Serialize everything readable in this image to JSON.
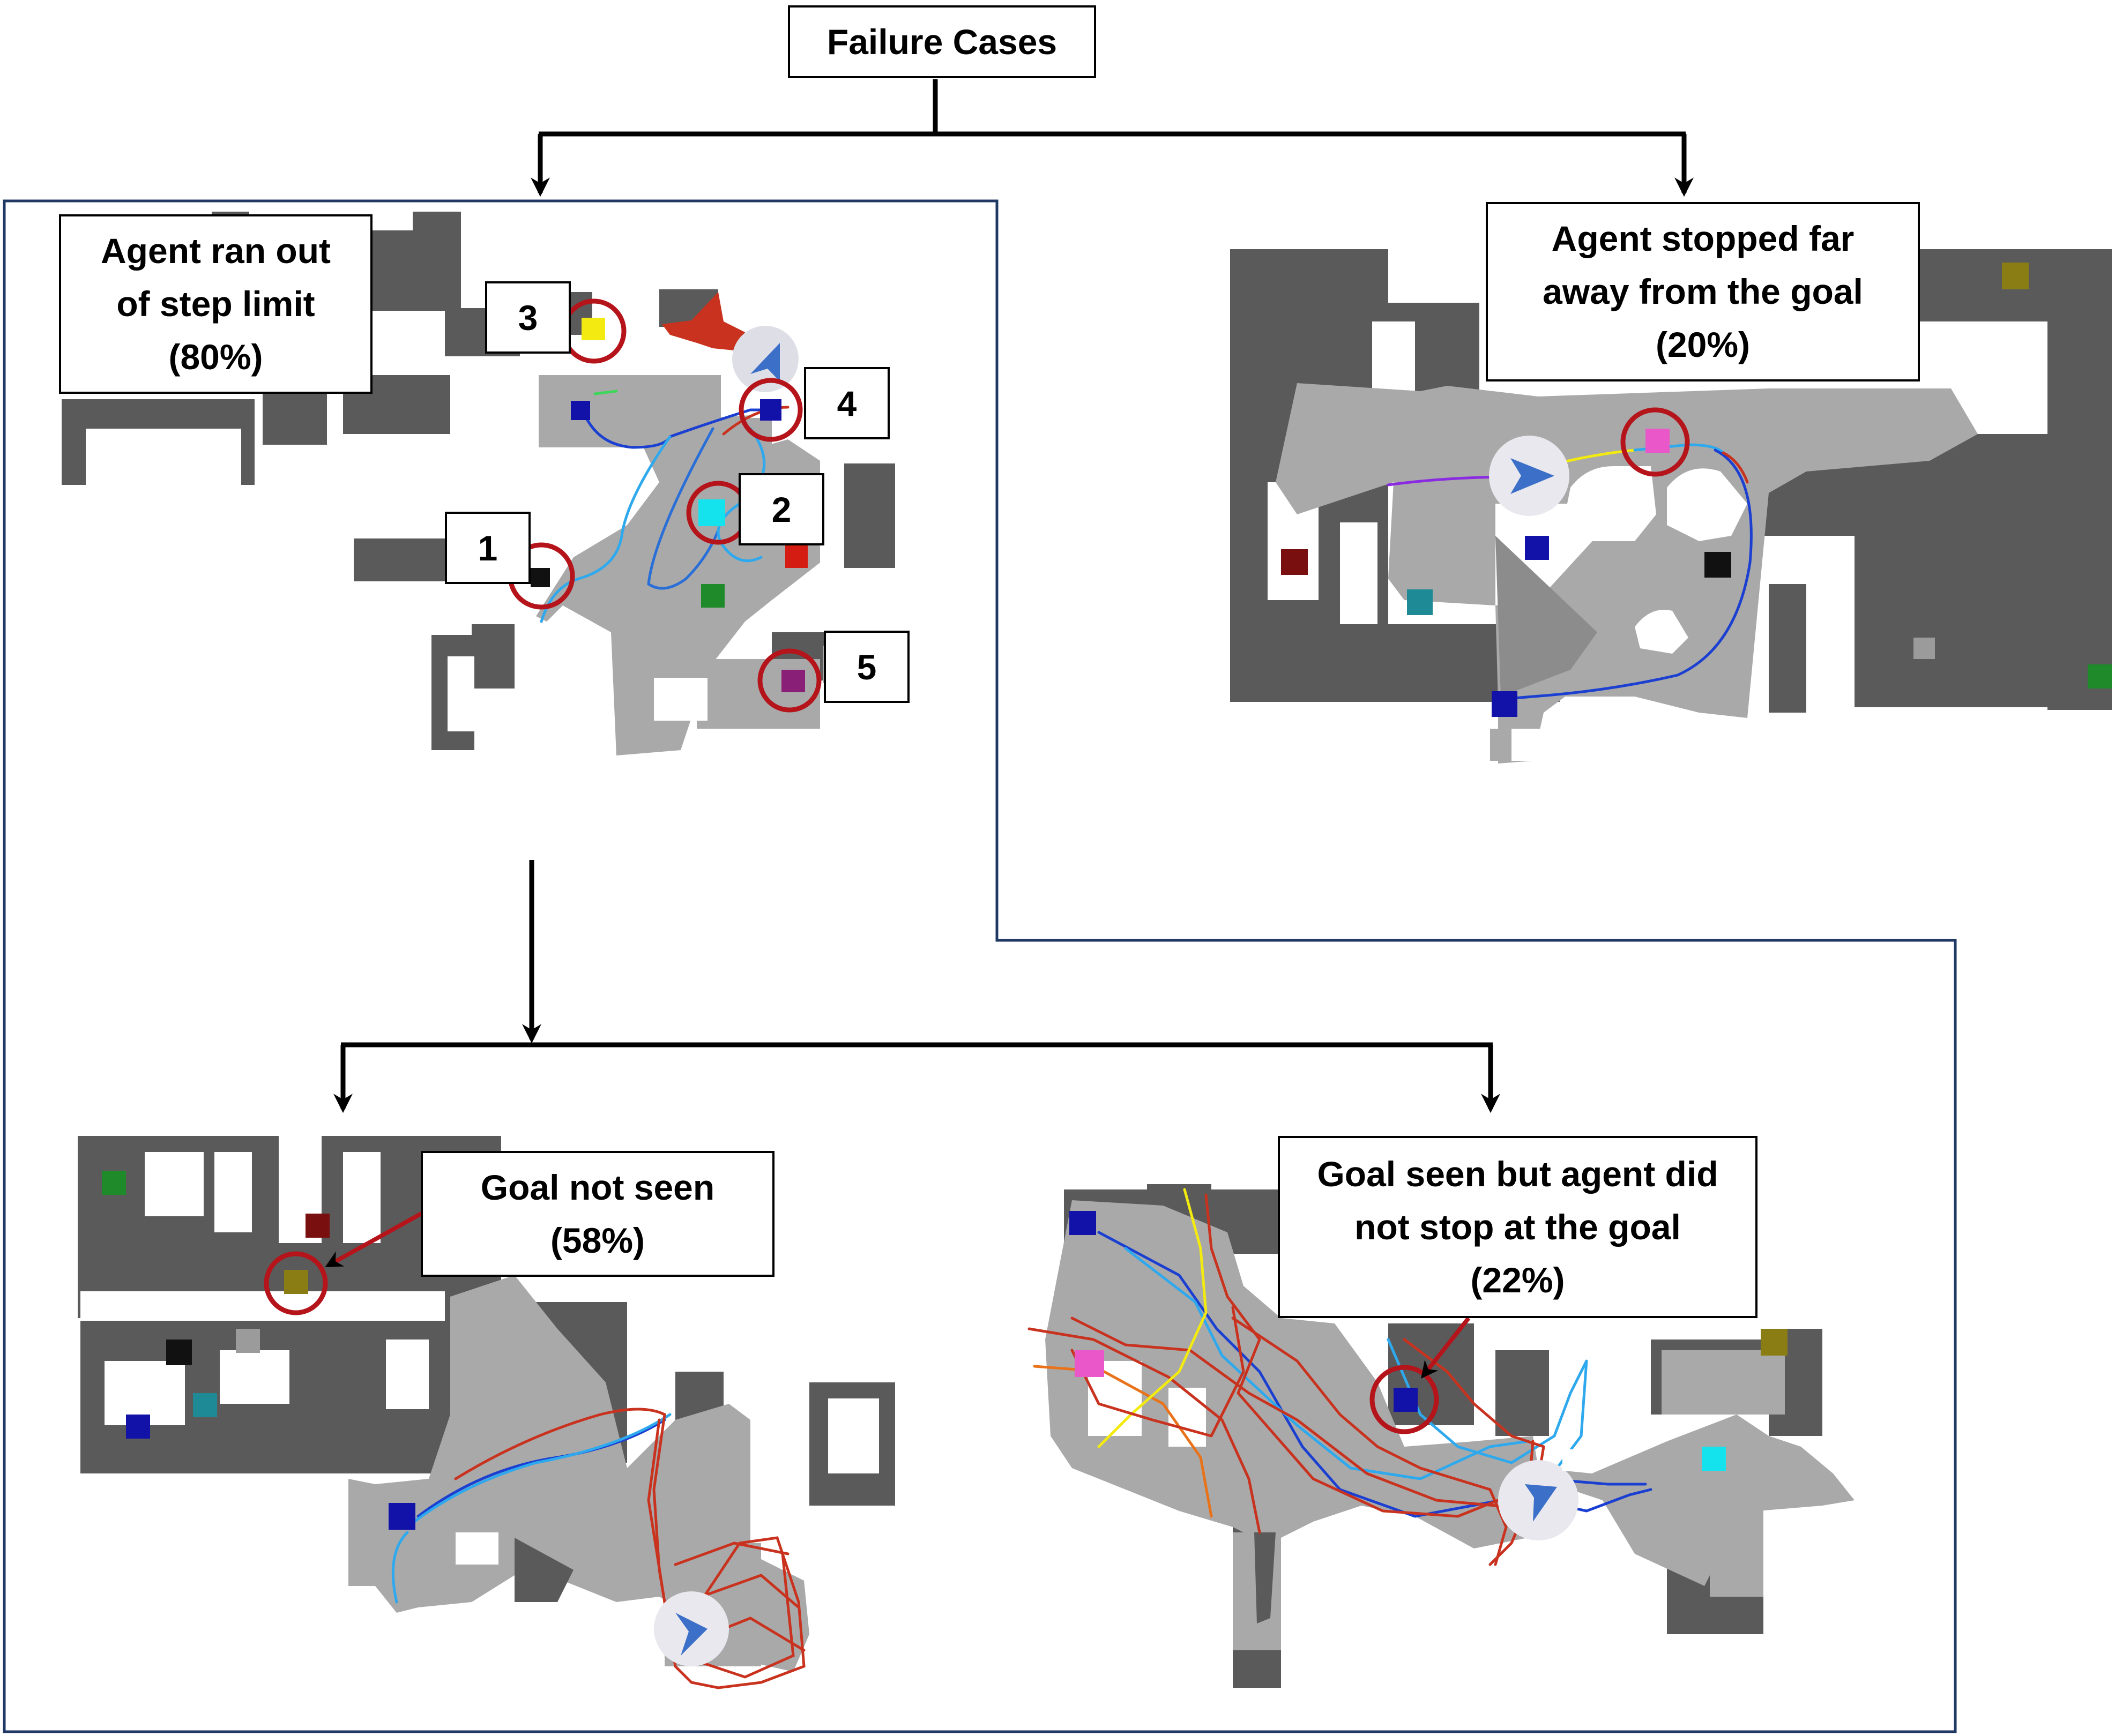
{
  "root": {
    "label": "Failure Cases"
  },
  "branch_step_limit": {
    "lines": [
      "Agent ran out",
      "of step limit",
      "(80%)"
    ]
  },
  "branch_stopped_far": {
    "lines": [
      "Agent stopped far",
      "away from the goal",
      "(20%)"
    ]
  },
  "branch_goal_not_seen": {
    "lines": [
      "Goal not seen",
      "(58%)"
    ]
  },
  "branch_goal_seen": {
    "lines": [
      "Goal seen but agent did",
      "not stop at the goal",
      "(22%)"
    ]
  },
  "goal_markers": [
    "1",
    "2",
    "3",
    "4",
    "5"
  ],
  "colors": {
    "floor": "#a9a9a9",
    "wall": "#5a5a5a",
    "frame": "#1f3864",
    "highlight_ring": "#b5141b",
    "path_blue": "#1b3fd1",
    "path_light_blue": "#2fa9ee",
    "path_red": "#c8321e",
    "agent_arrow": "#3c6fc8",
    "goal_colors": {
      "black": "#111111",
      "cyan": "#14e3ee",
      "yellow": "#f2ea10",
      "navy": "#1212a8",
      "purple": "#8a1f78",
      "red": "#d41c12",
      "green": "#1e8a2a",
      "pink": "#e957c9",
      "olive": "#8a7d14",
      "maroon": "#7a0f0f",
      "teal": "#1d8a95",
      "gray": "#9b9b9b"
    }
  }
}
